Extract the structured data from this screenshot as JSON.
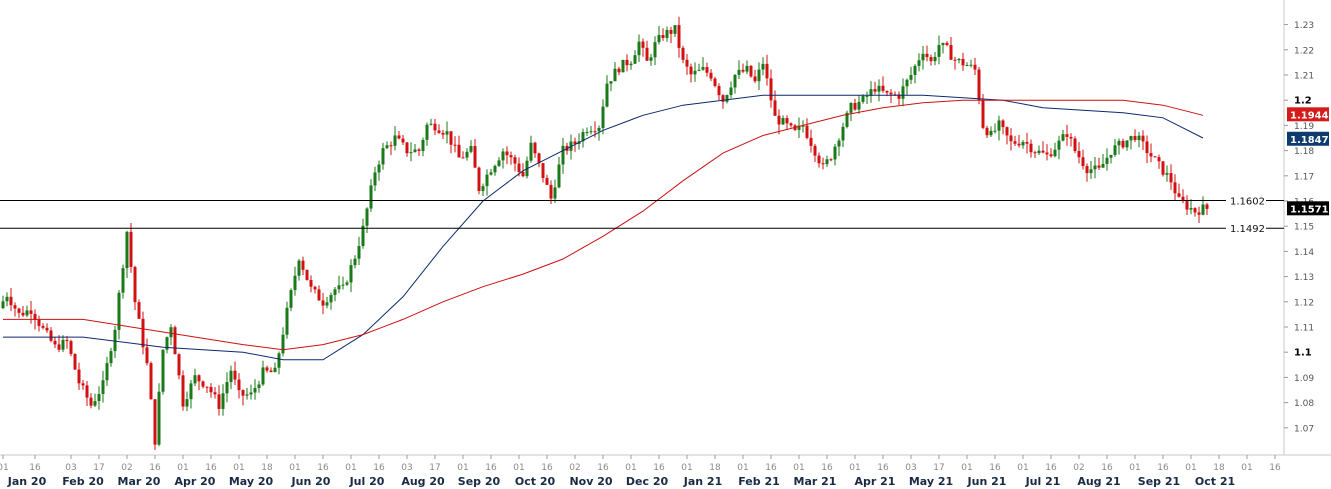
{
  "chart_data": {
    "type": "candlestick",
    "y_axis": {
      "range": [
        1.063,
        1.235
      ],
      "ticks": [
        "1.23",
        "1.22",
        "1.21",
        "1.2",
        "1.19",
        "1.18",
        "1.17",
        "1.16",
        "1.15",
        "1.14",
        "1.13",
        "1.12",
        "1.11",
        "1.1",
        "1.09",
        "1.08",
        "1.07"
      ],
      "major_ticks": [
        "1.2",
        "1.1"
      ]
    },
    "x_axis": {
      "months": [
        {
          "label": "Jan 20",
          "idx": 6
        },
        {
          "label": "Feb 20",
          "idx": 20
        },
        {
          "label": "Mar 20",
          "idx": 34
        },
        {
          "label": "Apr 20",
          "idx": 48
        },
        {
          "label": "May 20",
          "idx": 62
        },
        {
          "label": "Jun 20",
          "idx": 77
        },
        {
          "label": "Jul 20",
          "idx": 91
        },
        {
          "label": "Aug 20",
          "idx": 105
        },
        {
          "label": "Sep 20",
          "idx": 119
        },
        {
          "label": "Oct 20",
          "idx": 133
        },
        {
          "label": "Nov 20",
          "idx": 147
        },
        {
          "label": "Dec 20",
          "idx": 161
        },
        {
          "label": "Jan 21",
          "idx": 175
        },
        {
          "label": "Feb 21",
          "idx": 189
        },
        {
          "label": "Mar 21",
          "idx": 203
        },
        {
          "label": "Apr 21",
          "idx": 218
        },
        {
          "label": "May 21",
          "idx": 232
        },
        {
          "label": "Jun 21",
          "idx": 246
        },
        {
          "label": "Jul 21",
          "idx": 260
        },
        {
          "label": "Aug 21",
          "idx": 274
        },
        {
          "label": "Sep 21",
          "idx": 289
        },
        {
          "label": "Oct 21",
          "idx": 303
        }
      ],
      "day_ticks": [
        {
          "label": "01",
          "idx": 0
        },
        {
          "label": "16",
          "idx": 8
        },
        {
          "label": "03",
          "idx": 17
        },
        {
          "label": "17",
          "idx": 24
        },
        {
          "label": "02",
          "idx": 31
        },
        {
          "label": "16",
          "idx": 38
        },
        {
          "label": "01",
          "idx": 45
        },
        {
          "label": "16",
          "idx": 52
        },
        {
          "label": "01",
          "idx": 59
        },
        {
          "label": "18",
          "idx": 66
        },
        {
          "label": "01",
          "idx": 73
        },
        {
          "label": "16",
          "idx": 80
        },
        {
          "label": "01",
          "idx": 87
        },
        {
          "label": "16",
          "idx": 94
        },
        {
          "label": "03",
          "idx": 101
        },
        {
          "label": "17",
          "idx": 108
        },
        {
          "label": "01",
          "idx": 115
        },
        {
          "label": "16",
          "idx": 122
        },
        {
          "label": "01",
          "idx": 129
        },
        {
          "label": "16",
          "idx": 136
        },
        {
          "label": "02",
          "idx": 143
        },
        {
          "label": "16",
          "idx": 150
        },
        {
          "label": "01",
          "idx": 157
        },
        {
          "label": "16",
          "idx": 164
        },
        {
          "label": "01",
          "idx": 171
        },
        {
          "label": "18",
          "idx": 178
        },
        {
          "label": "01",
          "idx": 185
        },
        {
          "label": "16",
          "idx": 192
        },
        {
          "label": "01",
          "idx": 199
        },
        {
          "label": "16",
          "idx": 206
        },
        {
          "label": "01",
          "idx": 213
        },
        {
          "label": "16",
          "idx": 220
        },
        {
          "label": "03",
          "idx": 227
        },
        {
          "label": "17",
          "idx": 234
        },
        {
          "label": "01",
          "idx": 241
        },
        {
          "label": "16",
          "idx": 248
        },
        {
          "label": "01",
          "idx": 255
        },
        {
          "label": "16",
          "idx": 262
        },
        {
          "label": "02",
          "idx": 269
        },
        {
          "label": "16",
          "idx": 276
        },
        {
          "label": "01",
          "idx": 283
        },
        {
          "label": "16",
          "idx": 290
        },
        {
          "label": "01",
          "idx": 297
        },
        {
          "label": "18",
          "idx": 304
        },
        {
          "label": "01",
          "idx": 311
        },
        {
          "label": "16",
          "idx": 318
        }
      ],
      "total_slots": 320
    },
    "price_path": [
      [
        0,
        1.1175
      ],
      [
        2,
        1.123
      ],
      [
        5,
        1.115
      ],
      [
        8,
        1.117
      ],
      [
        11,
        1.109
      ],
      [
        14,
        1.102
      ],
      [
        17,
        1.104
      ],
      [
        20,
        1.088
      ],
      [
        23,
        1.079
      ],
      [
        26,
        1.087
      ],
      [
        29,
        1.11
      ],
      [
        32,
        1.148
      ],
      [
        34,
        1.12
      ],
      [
        37,
        1.095
      ],
      [
        39,
        1.065
      ],
      [
        41,
        1.101
      ],
      [
        43,
        1.111
      ],
      [
        46,
        1.08
      ],
      [
        49,
        1.09
      ],
      [
        52,
        1.087
      ],
      [
        55,
        1.079
      ],
      [
        58,
        1.093
      ],
      [
        60,
        1.083
      ],
      [
        63,
        1.083
      ],
      [
        66,
        1.092
      ],
      [
        69,
        1.092
      ],
      [
        72,
        1.116
      ],
      [
        75,
        1.138
      ],
      [
        78,
        1.125
      ],
      [
        81,
        1.12
      ],
      [
        84,
        1.125
      ],
      [
        86,
        1.125
      ],
      [
        89,
        1.138
      ],
      [
        91,
        1.149
      ],
      [
        94,
        1.172
      ],
      [
        96,
        1.18
      ],
      [
        99,
        1.185
      ],
      [
        102,
        1.18
      ],
      [
        105,
        1.18
      ],
      [
        107,
        1.19
      ],
      [
        109,
        1.19
      ],
      [
        112,
        1.187
      ],
      [
        115,
        1.177
      ],
      [
        118,
        1.18
      ],
      [
        120,
        1.165
      ],
      [
        123,
        1.173
      ],
      [
        126,
        1.18
      ],
      [
        129,
        1.175
      ],
      [
        131,
        1.17
      ],
      [
        133,
        1.182
      ],
      [
        136,
        1.17
      ],
      [
        138,
        1.161
      ],
      [
        141,
        1.18
      ],
      [
        144,
        1.183
      ],
      [
        147,
        1.189
      ],
      [
        150,
        1.19
      ],
      [
        152,
        1.207
      ],
      [
        155,
        1.213
      ],
      [
        158,
        1.216
      ],
      [
        160,
        1.223
      ],
      [
        162,
        1.215
      ],
      [
        164,
        1.222
      ],
      [
        166,
        1.226
      ],
      [
        169,
        1.228
      ],
      [
        171,
        1.215
      ],
      [
        173,
        1.21
      ],
      [
        176,
        1.212
      ],
      [
        178,
        1.21
      ],
      [
        181,
        1.2
      ],
      [
        184,
        1.21
      ],
      [
        187,
        1.212
      ],
      [
        189,
        1.207
      ],
      [
        191,
        1.215
      ],
      [
        194,
        1.193
      ],
      [
        196,
        1.191
      ],
      [
        199,
        1.187
      ],
      [
        201,
        1.19
      ],
      [
        204,
        1.18
      ],
      [
        206,
        1.173
      ],
      [
        208,
        1.178
      ],
      [
        211,
        1.19
      ],
      [
        213,
        1.197
      ],
      [
        216,
        1.2
      ],
      [
        219,
        1.205
      ],
      [
        222,
        1.202
      ],
      [
        225,
        1.202
      ],
      [
        228,
        1.21
      ],
      [
        231,
        1.22
      ],
      [
        233,
        1.215
      ],
      [
        235,
        1.222
      ],
      [
        237,
        1.22
      ],
      [
        239,
        1.216
      ],
      [
        242,
        1.214
      ],
      [
        244,
        1.212
      ],
      [
        246,
        1.19
      ],
      [
        248,
        1.186
      ],
      [
        250,
        1.19
      ],
      [
        253,
        1.183
      ],
      [
        256,
        1.184
      ],
      [
        259,
        1.18
      ],
      [
        262,
        1.178
      ],
      [
        265,
        1.183
      ],
      [
        267,
        1.187
      ],
      [
        269,
        1.18
      ],
      [
        272,
        1.173
      ],
      [
        275,
        1.172
      ],
      [
        278,
        1.18
      ],
      [
        281,
        1.183
      ],
      [
        284,
        1.186
      ],
      [
        286,
        1.182
      ],
      [
        289,
        1.176
      ],
      [
        291,
        1.172
      ],
      [
        293,
        1.168
      ],
      [
        295,
        1.16
      ],
      [
        297,
        1.158
      ],
      [
        299,
        1.156
      ],
      [
        301,
        1.157
      ]
    ],
    "ma_series": [
      {
        "color": "#0d2a6e",
        "points": [
          [
            0,
            1.106
          ],
          [
            20,
            1.106
          ],
          [
            40,
            1.102
          ],
          [
            60,
            1.1
          ],
          [
            70,
            1.097
          ],
          [
            80,
            1.097
          ],
          [
            90,
            1.107
          ],
          [
            100,
            1.122
          ],
          [
            110,
            1.142
          ],
          [
            120,
            1.16
          ],
          [
            130,
            1.172
          ],
          [
            140,
            1.18
          ],
          [
            150,
            1.188
          ],
          [
            160,
            1.194
          ],
          [
            170,
            1.198
          ],
          [
            180,
            1.2
          ],
          [
            190,
            1.202
          ],
          [
            200,
            1.202
          ],
          [
            210,
            1.202
          ],
          [
            220,
            1.202
          ],
          [
            230,
            1.202
          ],
          [
            240,
            1.201
          ],
          [
            250,
            1.2
          ],
          [
            260,
            1.197
          ],
          [
            270,
            1.196
          ],
          [
            280,
            1.195
          ],
          [
            290,
            1.193
          ],
          [
            300,
            1.185
          ]
        ]
      },
      {
        "color": "#cc1111",
        "points": [
          [
            0,
            1.113
          ],
          [
            20,
            1.113
          ],
          [
            40,
            1.108
          ],
          [
            60,
            1.103
          ],
          [
            70,
            1.101
          ],
          [
            80,
            1.103
          ],
          [
            90,
            1.107
          ],
          [
            100,
            1.113
          ],
          [
            110,
            1.12
          ],
          [
            120,
            1.126
          ],
          [
            130,
            1.131
          ],
          [
            140,
            1.137
          ],
          [
            150,
            1.146
          ],
          [
            160,
            1.156
          ],
          [
            170,
            1.168
          ],
          [
            180,
            1.179
          ],
          [
            190,
            1.186
          ],
          [
            200,
            1.19
          ],
          [
            210,
            1.194
          ],
          [
            220,
            1.197
          ],
          [
            230,
            1.199
          ],
          [
            240,
            1.2
          ],
          [
            250,
            1.2
          ],
          [
            260,
            1.2
          ],
          [
            270,
            1.2
          ],
          [
            280,
            1.2
          ],
          [
            290,
            1.198
          ],
          [
            300,
            1.194
          ]
        ]
      }
    ],
    "horizontal_lines": [
      {
        "label": "1.1602",
        "value": 1.1602
      },
      {
        "label": "1.1492",
        "value": 1.1492
      }
    ],
    "price_badges": [
      {
        "label": "1.1944",
        "value": 1.1944,
        "color": "#d41c1c"
      },
      {
        "label": "1.1847",
        "value": 1.1847,
        "color": "#0d3b70"
      },
      {
        "label": "1.1571",
        "value": 1.1571,
        "color": "#000000"
      }
    ],
    "candle_colors": {
      "up": "#1a7a1a",
      "down": "#d11111"
    },
    "grid": false
  }
}
